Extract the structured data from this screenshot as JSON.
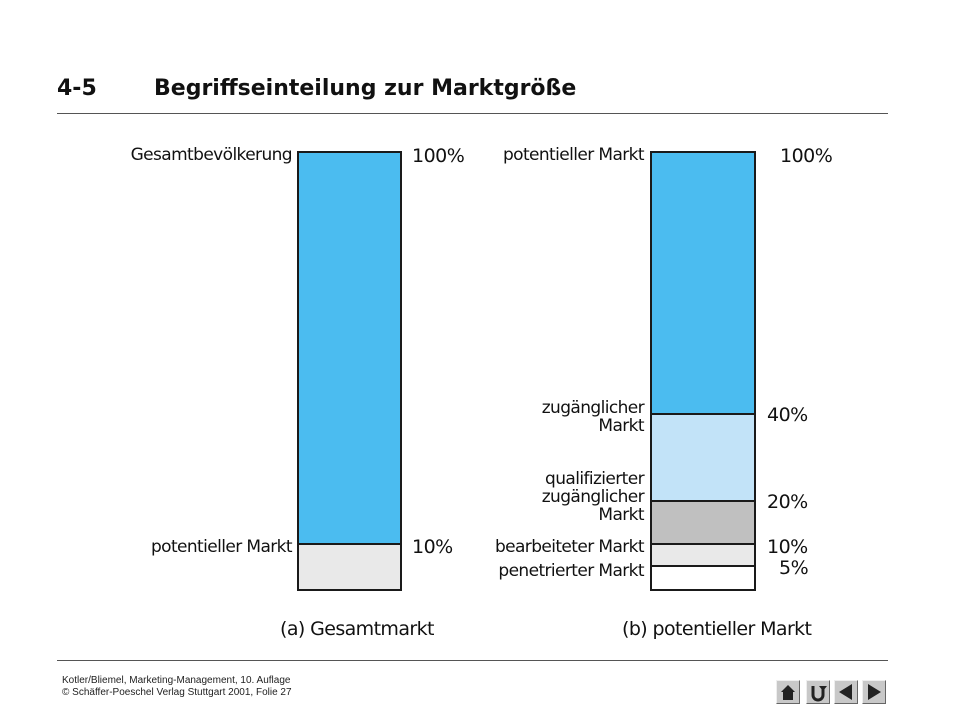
{
  "header": {
    "number": "4-5",
    "title": "Begriffseinteilung zur Marktgröße"
  },
  "diagram_a": {
    "caption": "(a) Gesamtmarkt",
    "top_label": "Gesamtbevölkerung",
    "top_pct": "100%",
    "segments": [
      {
        "label": "potentieller Markt",
        "pct_label": "10%",
        "value": 10,
        "color": "#e9e9e9"
      }
    ],
    "fill_color": "#4bbcf0"
  },
  "diagram_b": {
    "caption": "(b) potentieller Markt",
    "top_label": "potentieller Markt",
    "top_pct": "100%",
    "segments": [
      {
        "label_lines": [
          "zugänglicher",
          "Markt"
        ],
        "pct_label": "40%",
        "value": 40,
        "color": "#c2e3f8"
      },
      {
        "label_lines": [
          "qualifizierter",
          "zugänglicher",
          "Markt"
        ],
        "pct_label": "20%",
        "value": 20,
        "color": "#c0c0c0"
      },
      {
        "label_lines": [
          "bearbeiteter Markt"
        ],
        "pct_label": "10%",
        "value": 10,
        "color": "#e9e9e9"
      },
      {
        "label_lines": [
          "penetrierter Markt"
        ],
        "pct_label": "5%",
        "value": 5,
        "color": "#ffffff"
      }
    ],
    "fill_color": "#4bbcf0"
  },
  "footer": {
    "line1": "Kotler/Bliemel, Marketing-Management, 10. Auflage",
    "line2": "© Schäffer-Poeschel Verlag Stuttgart 2001, Folie 27"
  },
  "nav": [
    {
      "name": "home-icon"
    },
    {
      "name": "return-icon"
    },
    {
      "name": "previous-arrow-icon"
    },
    {
      "name": "next-arrow-icon"
    }
  ]
}
